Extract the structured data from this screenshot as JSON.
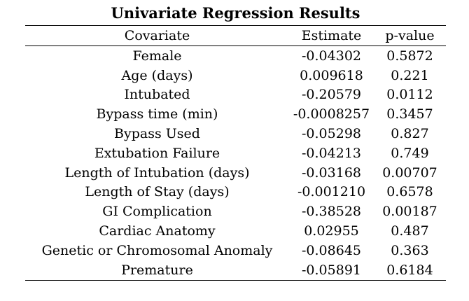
{
  "table": {
    "title": "Univariate Regression Results",
    "headers": [
      "Covariate",
      "Estimate",
      "p-value"
    ],
    "rows": [
      [
        "Female",
        "-0.04302",
        "0.5872"
      ],
      [
        "Age (days)",
        "0.009618",
        "0.221"
      ],
      [
        "Intubated",
        "-0.20579",
        "0.0112"
      ],
      [
        "Bypass time (min)",
        "-0.0008257",
        "0.3457"
      ],
      [
        "Bypass Used",
        "-0.05298",
        "0.827"
      ],
      [
        "Extubation Failure",
        "-0.04213",
        "0.749"
      ],
      [
        "Length of Intubation (days)",
        "-0.03168",
        "0.00707"
      ],
      [
        "Length of Stay (days)",
        "-0.001210",
        "0.6578"
      ],
      [
        "GI Complication",
        "-0.38528",
        "0.00187"
      ],
      [
        "Cardiac Anatomy",
        "0.02955",
        "0.487"
      ],
      [
        "Genetic or Chromosomal Anomaly",
        "-0.08645",
        "0.363"
      ],
      [
        "Premature",
        "-0.05891",
        "0.6184"
      ]
    ]
  }
}
